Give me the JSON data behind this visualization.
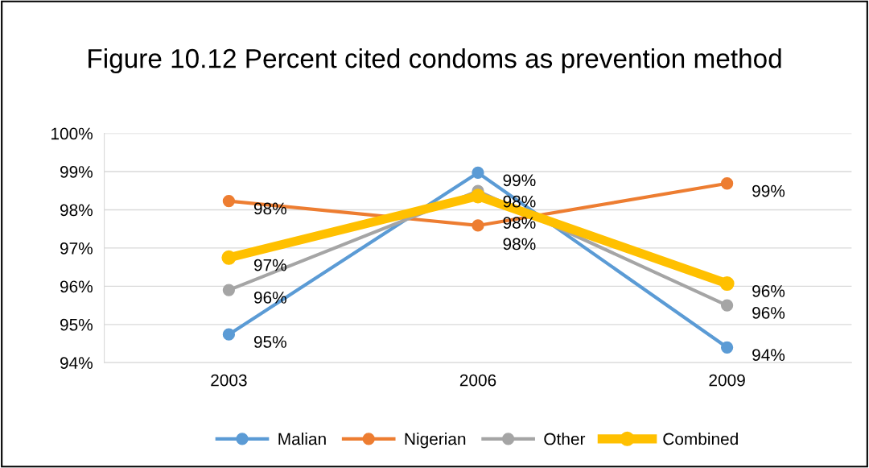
{
  "chart_data": {
    "type": "line",
    "title": "Figure 10.12 Percent cited condoms as prevention method",
    "categories": [
      "2003",
      "2006",
      "2009"
    ],
    "series": [
      {
        "name": "Malian",
        "color": "#5b9bd5",
        "values": [
          94.74,
          98.97,
          94.4
        ],
        "value_labels": [
          "95%",
          "99%",
          "94%"
        ]
      },
      {
        "name": "Nigerian",
        "color": "#ed7d31",
        "values": [
          98.23,
          97.59,
          98.69
        ],
        "value_labels": [
          "98%",
          "98%",
          "99%"
        ]
      },
      {
        "name": "Other",
        "color": "#a5a5a5",
        "values": [
          95.9,
          98.49,
          95.5
        ],
        "value_labels": [
          "96%",
          "98%",
          "96%"
        ]
      },
      {
        "name": "Combined",
        "color": "#ffc000",
        "values": [
          96.75,
          98.36,
          96.07
        ],
        "value_labels": [
          "97%",
          "98%",
          "96%"
        ]
      }
    ],
    "ylim": [
      94,
      100
    ],
    "yticks": [
      {
        "value": 94,
        "label": "94%"
      },
      {
        "value": 95,
        "label": "95%"
      },
      {
        "value": 96,
        "label": "96%"
      },
      {
        "value": 97,
        "label": "97%"
      },
      {
        "value": 98,
        "label": "98%"
      },
      {
        "value": 99,
        "label": "99%"
      },
      {
        "value": 100,
        "label": "100%"
      }
    ],
    "grid": "y",
    "legend": "bottom",
    "marker": "circle",
    "line_style": "solid"
  }
}
